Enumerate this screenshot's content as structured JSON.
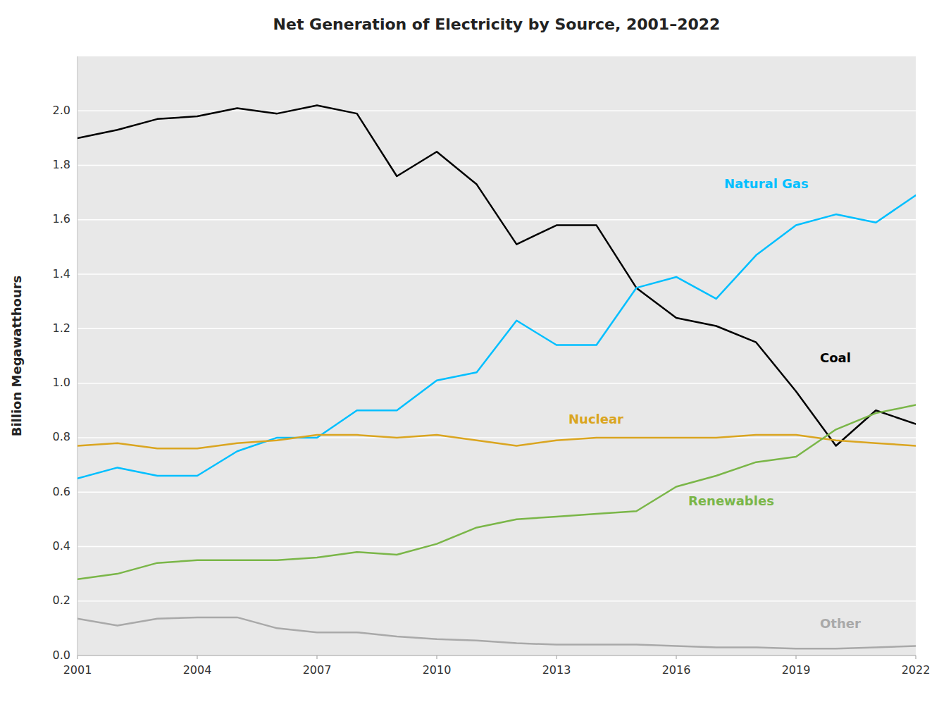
{
  "chart_data": {
    "type": "line",
    "title": "Net Generation of Electricity by Source, 2001–2022",
    "ylabel": "Billion Megawatthours",
    "x": [
      2001,
      2002,
      2003,
      2004,
      2005,
      2006,
      2007,
      2008,
      2009,
      2010,
      2011,
      2012,
      2013,
      2014,
      2015,
      2016,
      2017,
      2018,
      2019,
      2020,
      2021,
      2022
    ],
    "series": [
      {
        "name": "Coal",
        "color": "#000000",
        "values": [
          1.9,
          1.93,
          1.97,
          1.98,
          2.01,
          1.99,
          2.02,
          1.99,
          1.76,
          1.85,
          1.73,
          1.51,
          1.58,
          1.58,
          1.35,
          1.24,
          1.21,
          1.15,
          0.97,
          0.77,
          0.9,
          0.85
        ]
      },
      {
        "name": "Natural Gas",
        "color": "#00BFFF",
        "values": [
          0.65,
          0.69,
          0.66,
          0.66,
          0.75,
          0.8,
          0.8,
          0.9,
          0.9,
          1.01,
          1.04,
          1.23,
          1.14,
          1.14,
          1.35,
          1.39,
          1.31,
          1.47,
          1.58,
          1.62,
          1.59,
          1.69
        ]
      },
      {
        "name": "Nuclear",
        "color": "#DAA520",
        "values": [
          0.77,
          0.78,
          0.76,
          0.76,
          0.78,
          0.79,
          0.81,
          0.81,
          0.8,
          0.81,
          0.79,
          0.77,
          0.79,
          0.8,
          0.8,
          0.8,
          0.8,
          0.81,
          0.81,
          0.79,
          0.78,
          0.77
        ]
      },
      {
        "name": "Renewables",
        "color": "#7AB648",
        "values": [
          0.28,
          0.3,
          0.34,
          0.35,
          0.35,
          0.35,
          0.36,
          0.38,
          0.37,
          0.41,
          0.47,
          0.5,
          0.51,
          0.52,
          0.53,
          0.62,
          0.66,
          0.71,
          0.73,
          0.83,
          0.89,
          0.92
        ]
      },
      {
        "name": "Other",
        "color": "#A9A9A9",
        "values": [
          0.135,
          0.11,
          0.135,
          0.14,
          0.14,
          0.1,
          0.085,
          0.085,
          0.07,
          0.06,
          0.055,
          0.045,
          0.04,
          0.04,
          0.04,
          0.035,
          0.03,
          0.03,
          0.025,
          0.025,
          0.03,
          0.035
        ]
      }
    ],
    "xlim": [
      2001,
      2022
    ],
    "xticks": [
      2001,
      2004,
      2007,
      2010,
      2013,
      2016,
      2019,
      2022
    ],
    "ylim": [
      0.0,
      2.2
    ],
    "yticks": [
      {
        "value": 0.0,
        "label": "0.0"
      },
      0.2,
      0.4,
      0.6,
      0.8,
      {
        "value": 1.0,
        "label": "1.0"
      },
      1.2,
      1.4,
      1.6,
      1.8,
      {
        "value": 2.0,
        "label": "2.0"
      }
    ],
    "grid": true
  }
}
